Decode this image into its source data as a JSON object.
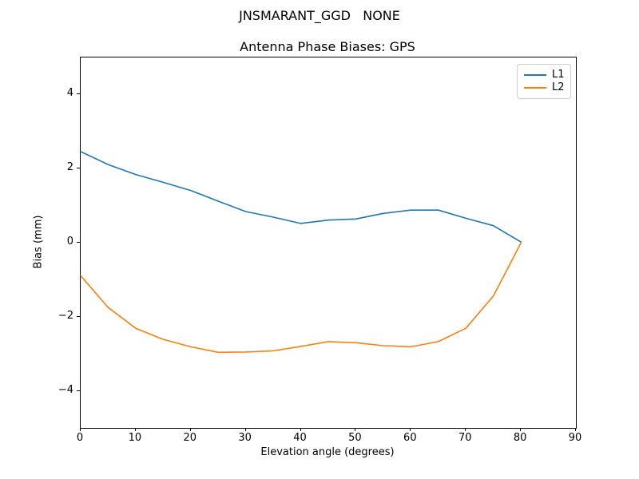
{
  "figure": {
    "suptitle": "JNSMARANT_GGD   NONE",
    "axes_title": "Antenna Phase Biases: GPS"
  },
  "chart_data": {
    "type": "line",
    "title": "Antenna Phase Biases: GPS",
    "suptitle": "JNSMARANT_GGD   NONE",
    "xlabel": "Elevation angle (degrees)",
    "ylabel": "Bias (mm)",
    "xlim": [
      0,
      90
    ],
    "ylim": [
      -5,
      5
    ],
    "xticks": [
      0,
      10,
      20,
      30,
      40,
      50,
      60,
      70,
      80,
      90
    ],
    "yticks": [
      -4,
      -2,
      0,
      2,
      4
    ],
    "grid": false,
    "legend_position": "upper right",
    "x": [
      0,
      5,
      10,
      15,
      20,
      25,
      30,
      35,
      40,
      45,
      50,
      55,
      60,
      65,
      70,
      75,
      80
    ],
    "series": [
      {
        "name": "L1",
        "color": "#1f77b4",
        "values": [
          2.46,
          2.11,
          1.84,
          1.63,
          1.41,
          1.12,
          0.84,
          0.69,
          0.52,
          0.61,
          0.64,
          0.79,
          0.88,
          0.88,
          0.66,
          0.46,
          0.02
        ]
      },
      {
        "name": "L2",
        "color": "#ff7f0e",
        "values": [
          -0.89,
          -1.75,
          -2.31,
          -2.61,
          -2.81,
          -2.96,
          -2.95,
          -2.92,
          -2.8,
          -2.67,
          -2.7,
          -2.78,
          -2.81,
          -2.67,
          -2.31,
          -1.44,
          -0.01
        ]
      }
    ]
  }
}
